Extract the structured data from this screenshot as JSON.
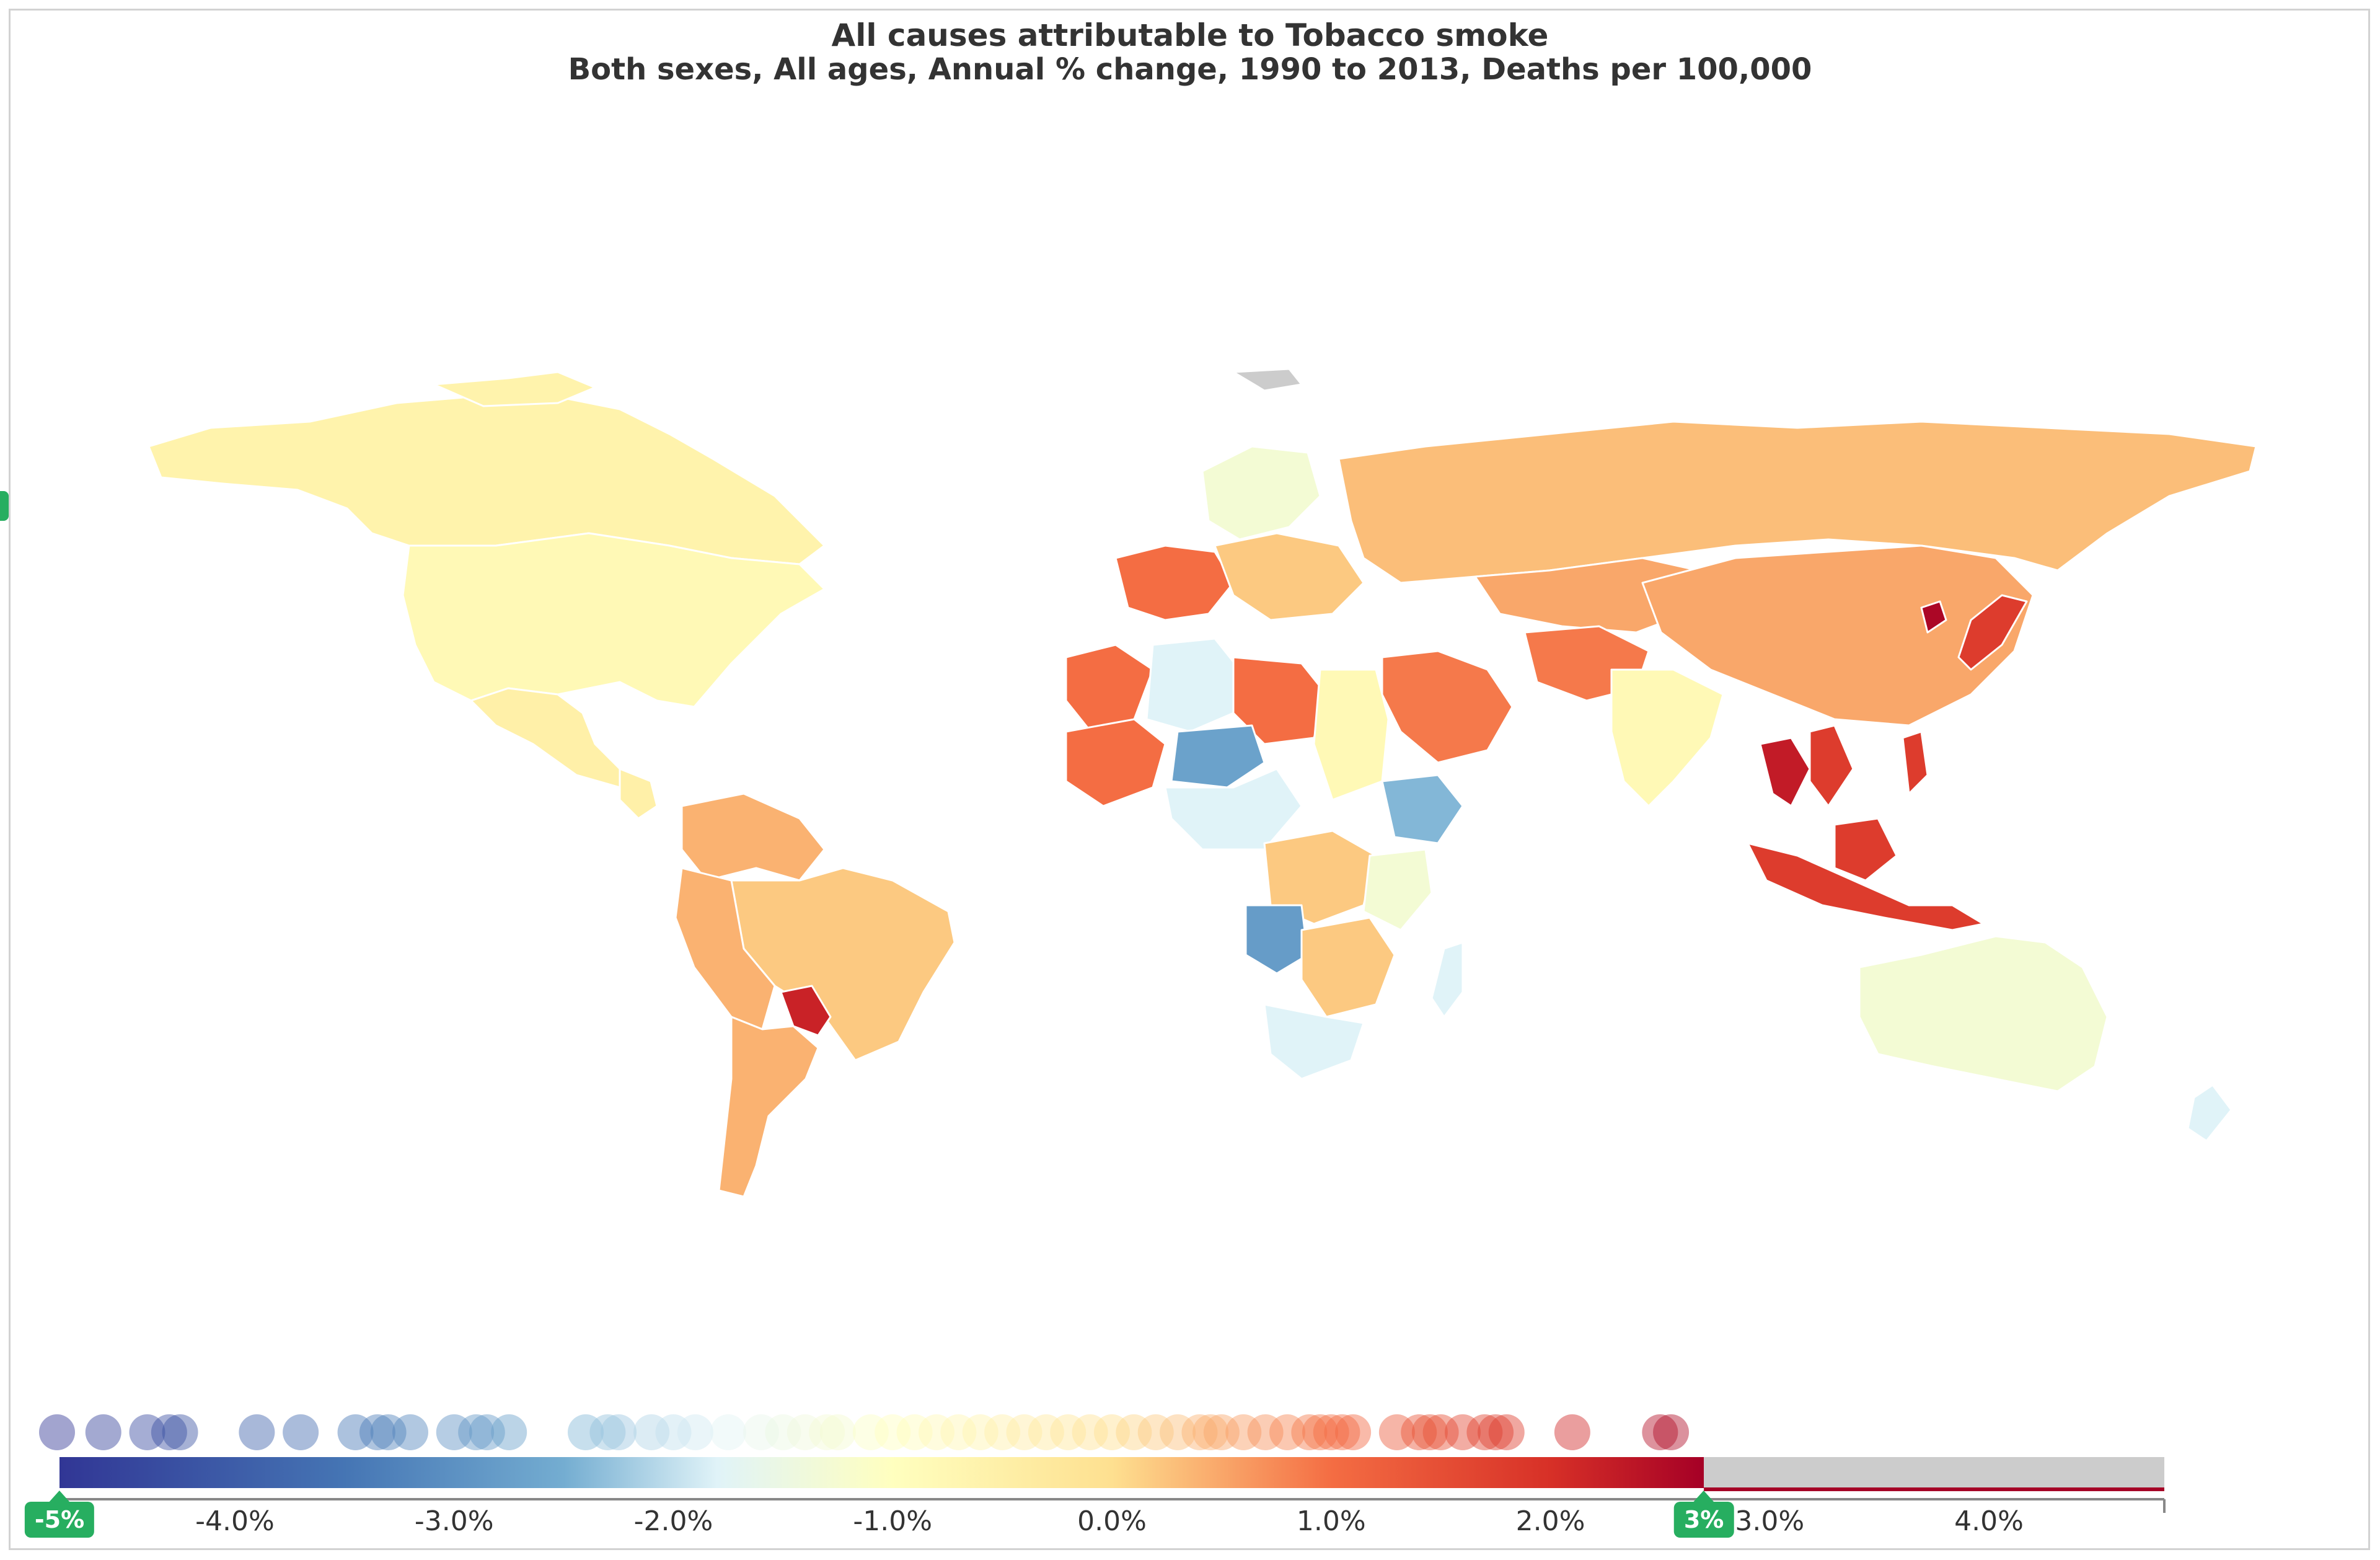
{
  "title": "All causes attributable to Tobacco smoke",
  "subtitle": "Both sexes, All ages, Annual % change, 1990 to 2013, Deaths per 100,000",
  "legend": {
    "tick_labels": [
      "-4.0%",
      "-3.0%",
      "-2.0%",
      "-1.0%",
      "0.0%",
      "1.0%",
      "2.0%",
      "3.0%",
      "4.0%"
    ],
    "tick_values": [
      -4,
      -3,
      -2,
      -1,
      0,
      1,
      2,
      3,
      4
    ],
    "range_min": -4.8,
    "range_max": 4.8,
    "color_stops": [
      {
        "value": -4.8,
        "color": "#313695"
      },
      {
        "value": -3.5,
        "color": "#4575b4"
      },
      {
        "value": -2.5,
        "color": "#74add1"
      },
      {
        "value": -1.8,
        "color": "#e0f3f8"
      },
      {
        "value": -1.0,
        "color": "#ffffbf"
      },
      {
        "value": 0.0,
        "color": "#fee090"
      },
      {
        "value": 1.0,
        "color": "#f46d43"
      },
      {
        "value": 2.0,
        "color": "#d73027"
      },
      {
        "value": 2.7,
        "color": "#a50026"
      }
    ],
    "no_data_color": "#cccccc",
    "handle_min_label": "-5%",
    "handle_max_label": "3%",
    "handle_min_value": -5,
    "handle_max_value": 2.7
  },
  "country_points": [
    -5.0,
    -4.6,
    -4.4,
    -4.3,
    -4.25,
    -3.9,
    -3.7,
    -3.45,
    -3.35,
    -3.3,
    -3.2,
    -3.0,
    -2.9,
    -2.85,
    -2.75,
    -2.4,
    -2.3,
    -2.25,
    -2.1,
    -2.0,
    -1.9,
    -1.75,
    -1.6,
    -1.5,
    -1.4,
    -1.3,
    -1.25,
    -1.1,
    -1.0,
    -0.9,
    -0.8,
    -0.7,
    -0.6,
    -0.5,
    -0.4,
    -0.3,
    -0.2,
    -0.1,
    0.0,
    0.1,
    0.2,
    0.3,
    0.4,
    0.45,
    0.5,
    0.6,
    0.7,
    0.8,
    0.9,
    0.95,
    1.0,
    1.05,
    1.1,
    1.3,
    1.4,
    1.45,
    1.5,
    1.6,
    1.7,
    1.75,
    1.8,
    2.1,
    2.5,
    2.55
  ],
  "regions": [
    {
      "name": "Canada",
      "value": -0.6
    },
    {
      "name": "United States",
      "value": -0.8
    },
    {
      "name": "Mexico",
      "value": -0.5
    },
    {
      "name": "Brazil",
      "value": 0.2
    },
    {
      "name": "Argentina",
      "value": 0.4
    },
    {
      "name": "Paraguay",
      "value": 2.2
    },
    {
      "name": "Russia",
      "value": 0.3
    },
    {
      "name": "China",
      "value": 0.5
    },
    {
      "name": "India",
      "value": -0.8
    },
    {
      "name": "Australia",
      "value": -1.3
    },
    {
      "name": "Thailand",
      "value": 2.3
    },
    {
      "name": "Indonesia",
      "value": 1.8
    },
    {
      "name": "Angola",
      "value": -2.8
    },
    {
      "name": "Niger",
      "value": -2.7
    },
    {
      "name": "Ethiopia",
      "value": -2.4
    },
    {
      "name": "Libya",
      "value": 1.0
    },
    {
      "name": "Saudi Arabia",
      "value": 0.9
    },
    {
      "name": "South Africa",
      "value": -1.8
    },
    {
      "name": "Japan",
      "value": 1.8
    },
    {
      "name": "North Korea",
      "value": 2.6
    }
  ]
}
